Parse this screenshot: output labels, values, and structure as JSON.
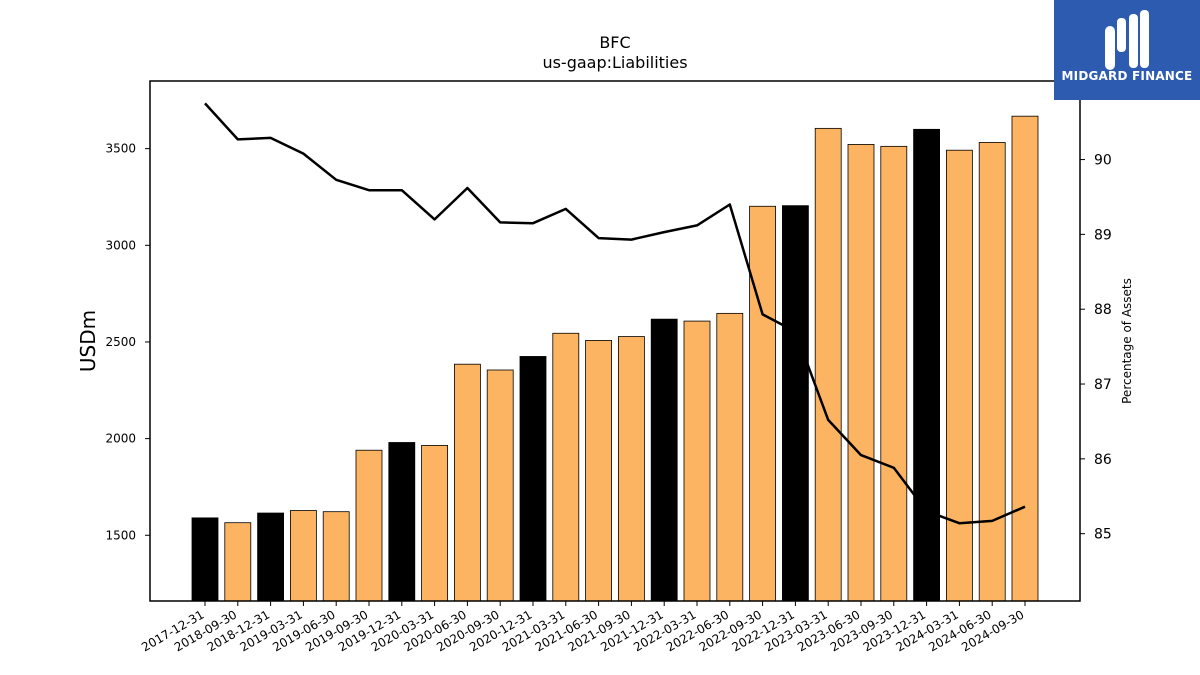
{
  "brand": {
    "name": "MIDGARD FINANCE",
    "color": "#2d5bb0"
  },
  "chart_data": {
    "type": "bar",
    "title": "BFC",
    "subtitle": "us-gaap:Liabilities",
    "ylabel": "USDm",
    "y2label": "Percentage of Assets",
    "ylim": [
      1160,
      3850
    ],
    "y2lim": [
      84.1,
      91.05
    ],
    "yticks": [
      1500,
      2000,
      2500,
      3000,
      3500
    ],
    "y2ticks": [
      85,
      86,
      87,
      88,
      89,
      90
    ],
    "categories": [
      "2017-12-31",
      "2018-09-30",
      "2018-12-31",
      "2019-03-31",
      "2019-06-30",
      "2019-09-30",
      "2019-12-31",
      "2020-03-31",
      "2020-06-30",
      "2020-09-30",
      "2020-12-31",
      "2021-03-31",
      "2021-06-30",
      "2021-09-30",
      "2021-12-31",
      "2022-03-31",
      "2022-06-30",
      "2022-09-30",
      "2022-12-31",
      "2023-03-31",
      "2023-06-30",
      "2023-09-30",
      "2023-12-31",
      "2024-03-31",
      "2024-06-30",
      "2024-09-30"
    ],
    "series": [
      {
        "type": "bar",
        "values": [
          1590,
          1565,
          1615,
          1628,
          1622,
          1940,
          1980,
          1965,
          2385,
          2355,
          2425,
          2545,
          2508,
          2528,
          2618,
          2608,
          2648,
          3202,
          3205,
          3605,
          3522,
          3512,
          3600,
          3492,
          3532,
          3668
        ]
      },
      {
        "type": "line",
        "axis": "right",
        "values": [
          90.75,
          90.27,
          90.29,
          90.08,
          89.73,
          89.59,
          89.59,
          89.2,
          89.62,
          89.16,
          89.15,
          89.34,
          88.95,
          88.93,
          89.03,
          89.12,
          89.4,
          87.93,
          87.7,
          86.52,
          86.05,
          85.88,
          85.3,
          85.14,
          85.17,
          85.36
        ]
      }
    ],
    "bar_colors": {
      "annual": "#000000",
      "quarterly": "#fdb462",
      "edge": "#000000"
    },
    "annual_flags": [
      1,
      0,
      1,
      0,
      0,
      0,
      1,
      0,
      0,
      0,
      1,
      0,
      0,
      0,
      1,
      0,
      0,
      0,
      1,
      0,
      0,
      0,
      1,
      0,
      0,
      0
    ],
    "line_color": "#000000",
    "grid": false,
    "legend": "none"
  }
}
